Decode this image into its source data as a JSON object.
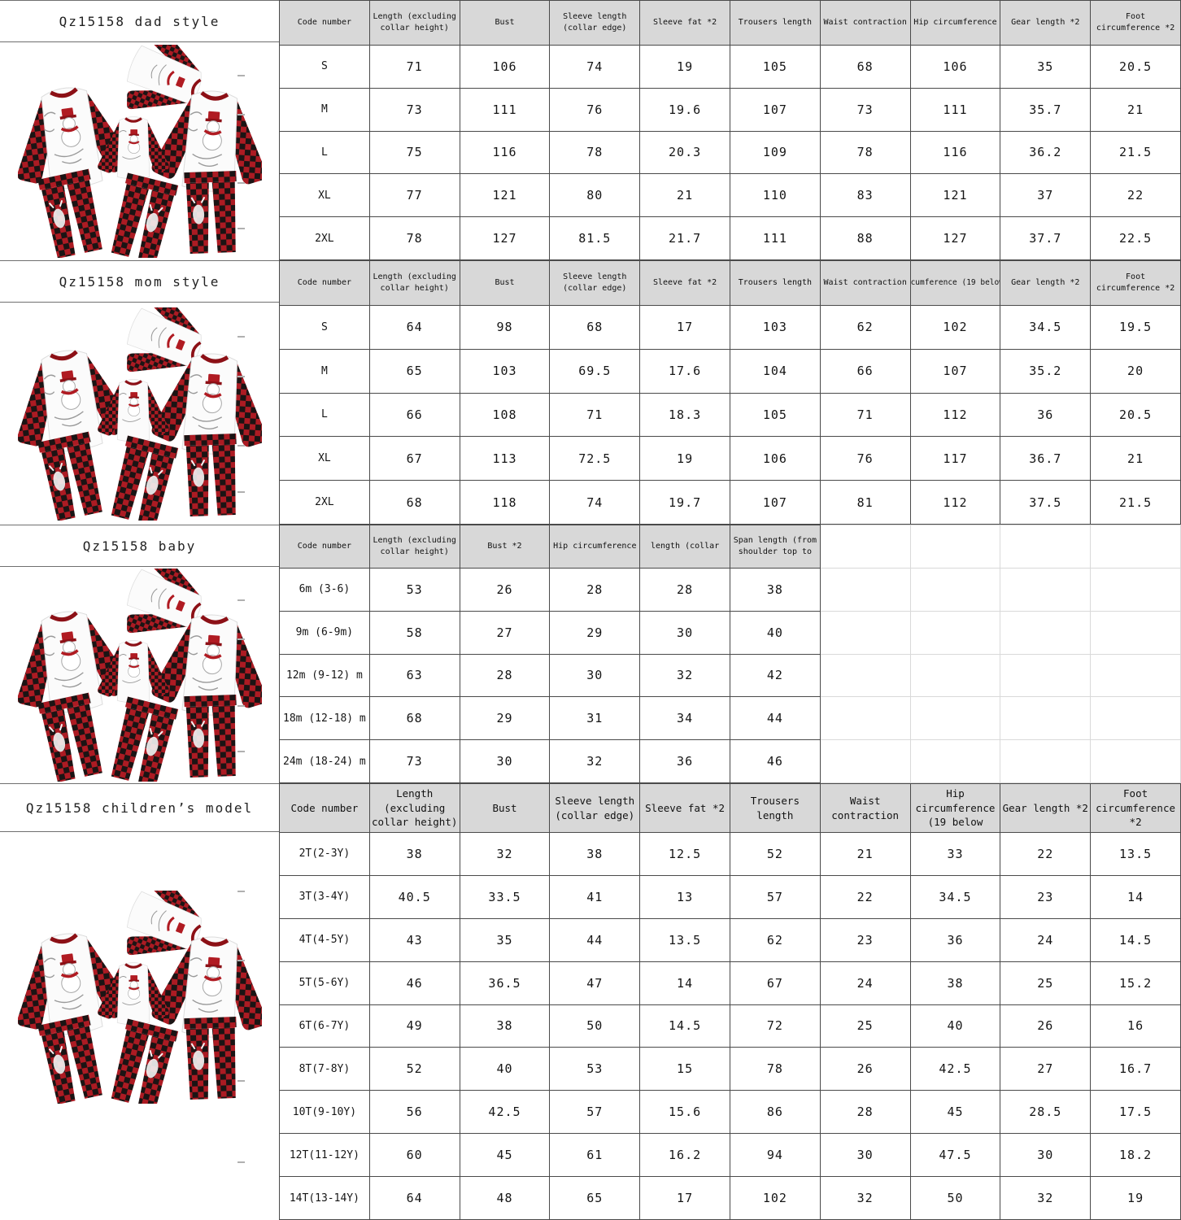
{
  "page_title": "Qz15158 family pajamas size chart",
  "colors": {
    "header_bg": "#d8d8d8",
    "grid_border": "#4a4a4a",
    "ghost_border": "#d9d9d9",
    "plaid_red": "#c1232b",
    "plaid_black": "#1b1414",
    "accent_dark_red": "#8c1016"
  },
  "icons": {
    "pajama_set": "pajama-set-illustration",
    "fold_mark": "fold-mark"
  },
  "sections": [
    {
      "id": "dad",
      "title": "Qz15158 dad style",
      "columns": [
        "Code number",
        "Length (excluding collar height)",
        "Bust",
        "Sleeve length (collar edge)",
        "Sleeve fat *2",
        "Trousers length",
        "Waist contraction",
        "Hip circumference",
        "Gear length *2",
        "Foot circumference *2"
      ],
      "ghost_cols": 0,
      "rows": [
        [
          "S",
          "71",
          "106",
          "74",
          "19",
          "105",
          "68",
          "106",
          "35",
          "20.5"
        ],
        [
          "M",
          "73",
          "111",
          "76",
          "19.6",
          "107",
          "73",
          "111",
          "35.7",
          "21"
        ],
        [
          "L",
          "75",
          "116",
          "78",
          "20.3",
          "109",
          "78",
          "116",
          "36.2",
          "21.5"
        ],
        [
          "XL",
          "77",
          "121",
          "80",
          "21",
          "110",
          "83",
          "121",
          "37",
          "22"
        ],
        [
          "2XL",
          "78",
          "127",
          "81.5",
          "21.7",
          "111",
          "88",
          "127",
          "37.7",
          "22.5"
        ]
      ]
    },
    {
      "id": "mom",
      "title": "Qz15158 mom style",
      "columns": [
        "Code number",
        "Length (excluding collar height)",
        "Bust",
        "Sleeve length (collar edge)",
        "Sleeve fat *2",
        "Trousers length",
        "Waist contraction",
        "cumference (19 below",
        "Gear length *2",
        "Foot circumference *2"
      ],
      "ghost_cols": 0,
      "rows": [
        [
          "S",
          "64",
          "98",
          "68",
          "17",
          "103",
          "62",
          "102",
          "34.5",
          "19.5"
        ],
        [
          "M",
          "65",
          "103",
          "69.5",
          "17.6",
          "104",
          "66",
          "107",
          "35.2",
          "20"
        ],
        [
          "L",
          "66",
          "108",
          "71",
          "18.3",
          "105",
          "71",
          "112",
          "36",
          "20.5"
        ],
        [
          "XL",
          "67",
          "113",
          "72.5",
          "19",
          "106",
          "76",
          "117",
          "36.7",
          "21"
        ],
        [
          "2XL",
          "68",
          "118",
          "74",
          "19.7",
          "107",
          "81",
          "112",
          "37.5",
          "21.5"
        ]
      ]
    },
    {
      "id": "baby",
      "title": "Qz15158 baby",
      "columns": [
        "Code number",
        "Length (excluding collar height)",
        "Bust *2",
        "Hip circumference",
        "length (collar",
        "Span length (from shoulder top to",
        "",
        "",
        "",
        ""
      ],
      "ghost_cols": 4,
      "rows": [
        [
          "6m (3-6)",
          "53",
          "26",
          "28",
          "28",
          "38",
          "",
          "",
          "",
          ""
        ],
        [
          "9m (6-9m)",
          "58",
          "27",
          "29",
          "30",
          "40",
          "",
          "",
          "",
          ""
        ],
        [
          "12m (9-12) m",
          "63",
          "28",
          "30",
          "32",
          "42",
          "",
          "",
          "",
          ""
        ],
        [
          "18m (12-18) m",
          "68",
          "29",
          "31",
          "34",
          "44",
          "",
          "",
          "",
          ""
        ],
        [
          "24m (18-24) m",
          "73",
          "30",
          "32",
          "36",
          "46",
          "",
          "",
          "",
          ""
        ]
      ]
    },
    {
      "id": "children",
      "title": "Qz15158 children’s model",
      "columns": [
        "Code number",
        "Length (excluding collar height)",
        "Bust",
        "Sleeve length (collar edge)",
        "Sleeve fat *2",
        "Trousers length",
        "Waist contraction",
        "Hip circumference (19 below",
        "Gear length *2",
        "Foot circumference *2"
      ],
      "ghost_cols": 0,
      "rows": [
        [
          "2T(2-3Y)",
          "38",
          "32",
          "38",
          "12.5",
          "52",
          "21",
          "33",
          "22",
          "13.5"
        ],
        [
          "3T(3-4Y)",
          "40.5",
          "33.5",
          "41",
          "13",
          "57",
          "22",
          "34.5",
          "23",
          "14"
        ],
        [
          "4T(4-5Y)",
          "43",
          "35",
          "44",
          "13.5",
          "62",
          "23",
          "36",
          "24",
          "14.5"
        ],
        [
          "5T(5-6Y)",
          "46",
          "36.5",
          "47",
          "14",
          "67",
          "24",
          "38",
          "25",
          "15.2"
        ],
        [
          "6T(6-7Y)",
          "49",
          "38",
          "50",
          "14.5",
          "72",
          "25",
          "40",
          "26",
          "16"
        ],
        [
          "8T(7-8Y)",
          "52",
          "40",
          "53",
          "15",
          "78",
          "26",
          "42.5",
          "27",
          "16.7"
        ],
        [
          "10T(9-10Y)",
          "56",
          "42.5",
          "57",
          "15.6",
          "86",
          "28",
          "45",
          "28.5",
          "17.5"
        ],
        [
          "12T(11-12Y)",
          "60",
          "45",
          "61",
          "16.2",
          "94",
          "30",
          "47.5",
          "30",
          "18.2"
        ],
        [
          "14T(13-14Y)",
          "64",
          "48",
          "65",
          "17",
          "102",
          "32",
          "50",
          "32",
          "19"
        ]
      ]
    }
  ]
}
